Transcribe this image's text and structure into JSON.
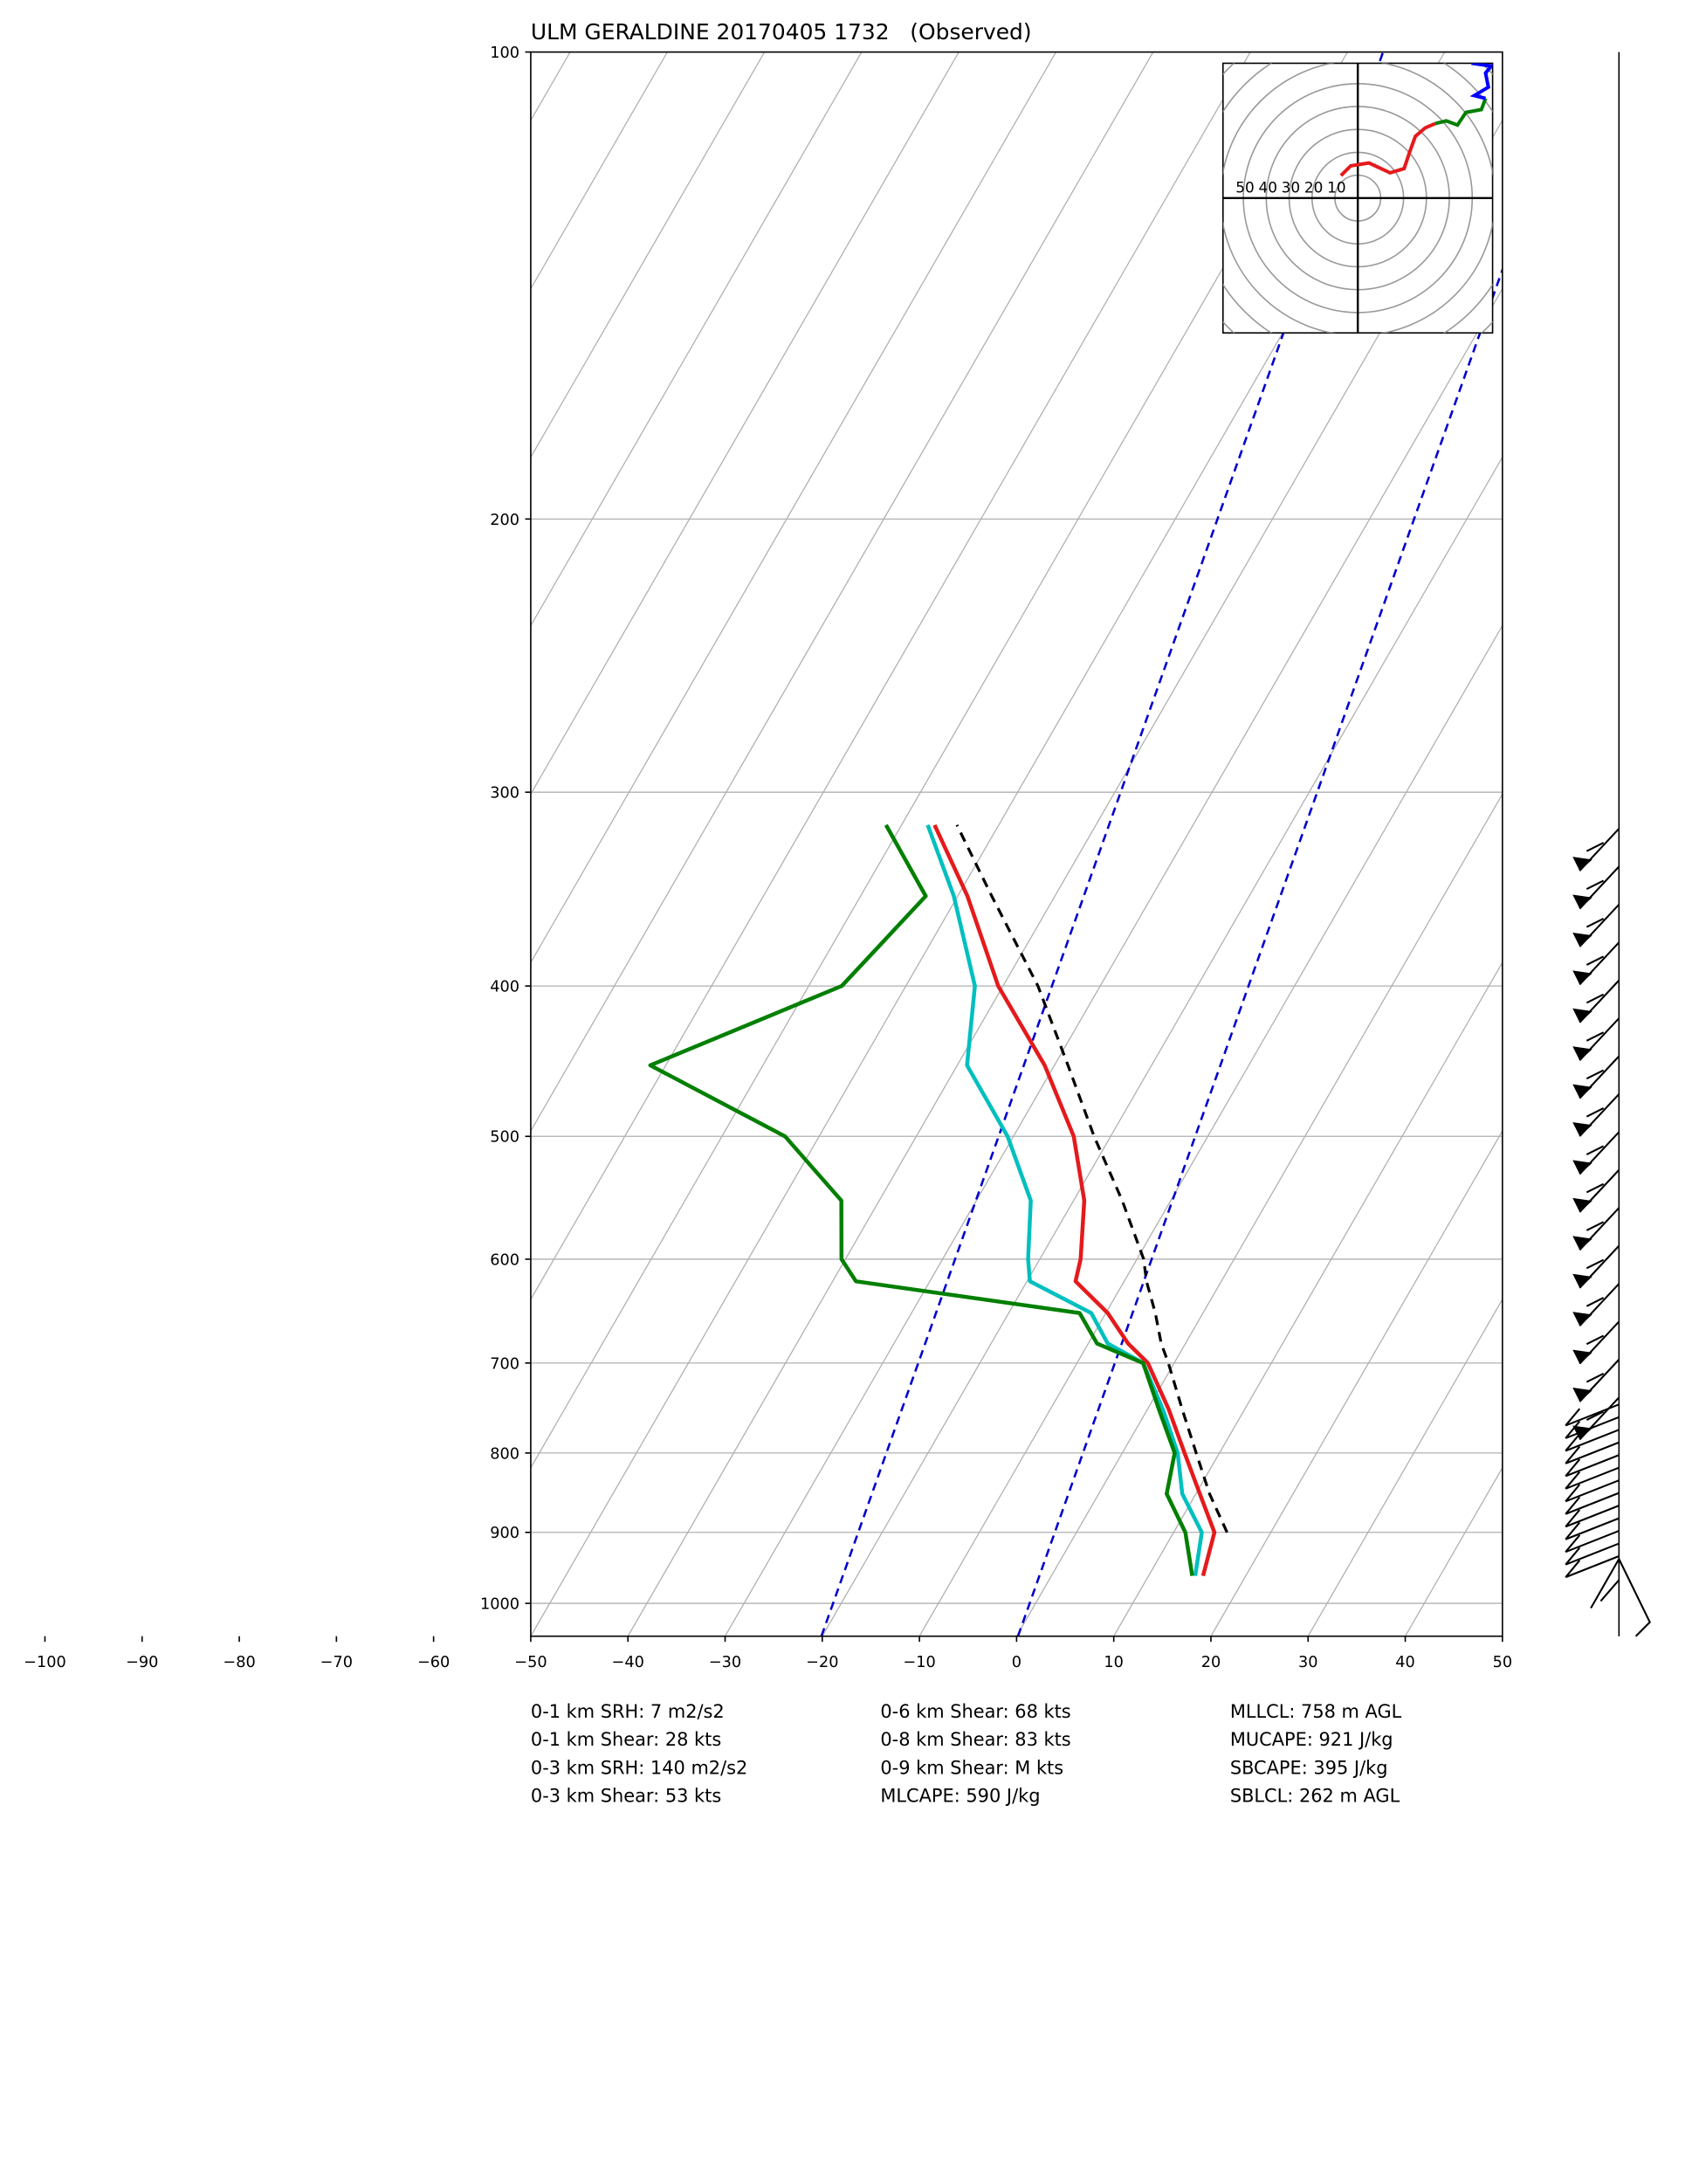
{
  "chart_data": {
    "type": "skewt",
    "title": "ULM GERALDINE 20170405 1732   (Observed)",
    "xlim": [
      -50,
      50
    ],
    "xticks": [
      -100,
      -90,
      -80,
      -70,
      -60,
      -50,
      -40,
      -30,
      -20,
      -10,
      0,
      10,
      20,
      30,
      40,
      50
    ],
    "ylim": [
      1050,
      100
    ],
    "yticks": [
      100,
      200,
      300,
      400,
      500,
      600,
      700,
      800,
      900,
      1000
    ],
    "log_y": true,
    "grid": true,
    "pressure": [
      960,
      900,
      850,
      800,
      750,
      700,
      680,
      650,
      620,
      600,
      550,
      500,
      450,
      400,
      350,
      315
    ],
    "series": [
      {
        "color": "#e41a1c",
        "values": [
          15.6,
          14.2,
          10.4,
          6.4,
          2.2,
          -2.7,
          -5.9,
          -9.8,
          -15.0,
          -15.8,
          -18.9,
          -23.8,
          -31.0,
          -40.5,
          -49.0,
          -56.6
        ]
      },
      {
        "color": "#00bfbf",
        "values": [
          14.8,
          12.9,
          8.6,
          5.7,
          1.6,
          -3.2,
          -8.0,
          -11.5,
          -19.7,
          -21.2,
          -24.4,
          -30.6,
          -39.0,
          -42.9,
          -50.4,
          -57.3
        ]
      },
      {
        "color": "#007f00",
        "values": [
          14.5,
          11.2,
          7.0,
          5.4,
          1.2,
          -3.2,
          -9.1,
          -12.7,
          -37.6,
          -40.4,
          -43.9,
          -53.5,
          -71.6,
          -56.6,
          -53.3,
          -61.6
        ]
      },
      {
        "color": "#000000",
        "dashed": true,
        "values": [
          null,
          15.5,
          11.4,
          7.6,
          3.6,
          -0.6,
          -2.5,
          -4.9,
          -7.7,
          -9.3,
          -15.0,
          -21.7,
          -28.6,
          -36.4,
          -46.5,
          -54.3
        ]
      }
    ],
    "hodograph_rings": [
      50,
      40,
      30,
      20,
      10
    ],
    "stats": [
      "0-1 km SRH: 7 m2/s2",
      "0-1 km Shear: 28 kts",
      "0-3 km SRH: 140 m2/s2",
      "0-3 km Shear: 53 kts",
      "0-6 km Shear: 68 kts",
      "0-8 km Shear: 83 kts",
      "0-9 km Shear: M kts",
      "MLCAPE: 590 J/kg",
      "MLLCL: 758 m AGL",
      "MUCAPE: 921 J/kg",
      "SBCAPE: 395 J/kg",
      "SBLCL: 262 m AGL"
    ]
  }
}
